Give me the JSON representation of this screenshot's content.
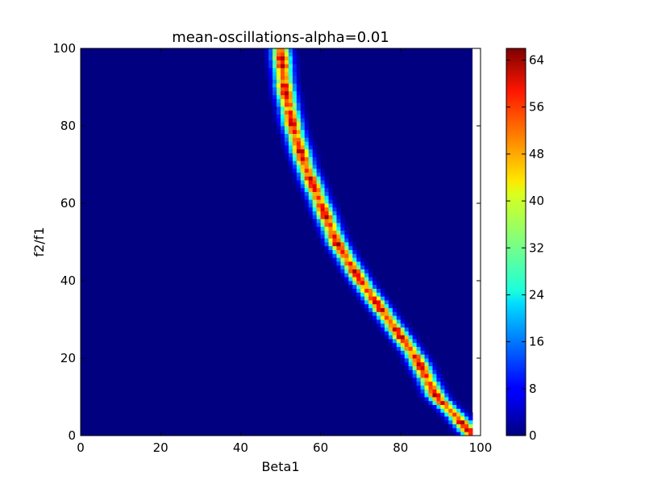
{
  "chart_data": {
    "type": "heatmap",
    "title": "mean-oscillations-alpha=0.01",
    "xlabel": "Beta1",
    "ylabel": "f2/f1",
    "xlim": [
      0,
      100
    ],
    "ylim": [
      0,
      100
    ],
    "x_ticks": [
      "0",
      "20",
      "40",
      "60",
      "80",
      "100"
    ],
    "y_ticks": [
      "0",
      "20",
      "40",
      "60",
      "80",
      "100"
    ],
    "grid": false,
    "colormap": "jet",
    "grid_size": 100,
    "data_columns": 98,
    "background_value": 0,
    "band": {
      "description_points": [
        [
          98,
          0
        ],
        [
          94,
          5
        ],
        [
          89,
          10
        ],
        [
          84,
          20
        ],
        [
          77,
          30
        ],
        [
          70,
          40
        ],
        [
          64,
          50
        ],
        [
          60,
          60
        ],
        [
          56,
          70
        ],
        [
          53,
          80
        ],
        [
          51,
          90
        ],
        [
          50,
          100
        ]
      ],
      "peak_value": 66,
      "half_width": 1.6
    },
    "colorbar": {
      "min": 0,
      "max": 66,
      "ticks": [
        "0",
        "8",
        "16",
        "24",
        "32",
        "40",
        "48",
        "56",
        "64"
      ]
    }
  }
}
